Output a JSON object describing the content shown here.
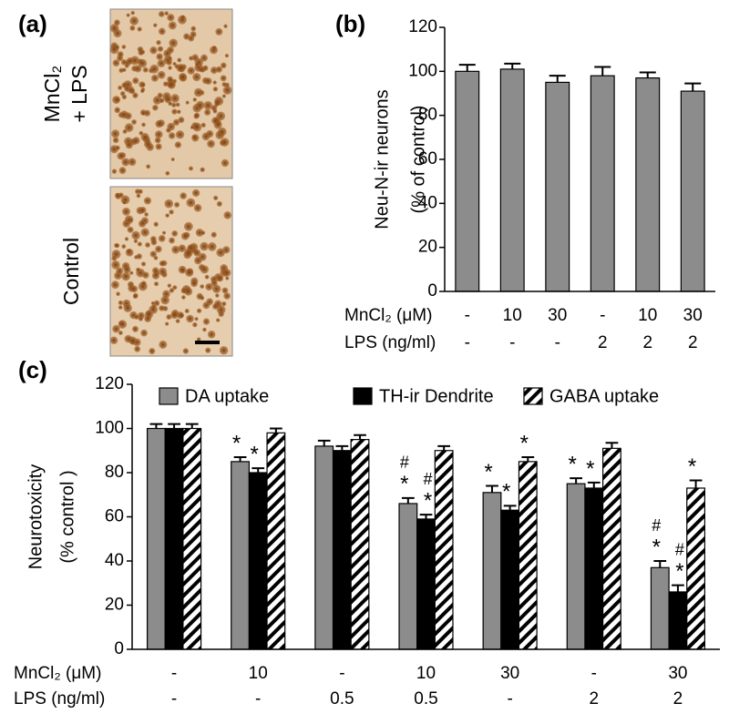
{
  "panel_a": {
    "label": "(a)",
    "images": [
      {
        "label": [
          "MnCl₂",
          "+ LPS"
        ]
      },
      {
        "label": [
          "Control"
        ]
      }
    ]
  },
  "chart_data": [
    {
      "type": "bar",
      "panel_label": "(b)",
      "ylabel": [
        "Neu-N-ir neurons",
        "(% of control)"
      ],
      "row_labels": [
        "MnCl₂ (μM)",
        "LPS (ng/ml)"
      ],
      "categories": [
        "-",
        "10",
        "30",
        "-",
        "10",
        "30"
      ],
      "categories2": [
        "-",
        "-",
        "-",
        "2",
        "2",
        "2"
      ],
      "series": [
        {
          "color": "#8c8c8c",
          "values": [
            100,
            101,
            95,
            98,
            97,
            91
          ],
          "errors": [
            3,
            2.5,
            3,
            4,
            2.5,
            3.5
          ]
        }
      ],
      "ylim": [
        0,
        120
      ],
      "yticks": [
        0,
        20,
        40,
        60,
        80,
        100,
        120
      ]
    },
    {
      "type": "bar",
      "panel_label": "(c)",
      "ylabel": [
        "Neurotoxicity",
        "(% control )"
      ],
      "row_labels": [
        "MnCl₂ (μM)",
        "LPS (ng/ml)"
      ],
      "categories": [
        "-",
        "10",
        "-",
        "10",
        "30",
        "-",
        "30"
      ],
      "categories2": [
        "-",
        "-",
        "0.5",
        "0.5",
        "-",
        "2",
        "2"
      ],
      "series": [
        {
          "name": "DA uptake",
          "color": "#8c8c8c",
          "values": [
            100,
            85,
            92,
            66,
            71,
            75,
            37
          ],
          "errors": [
            2,
            2,
            2.5,
            2.5,
            3,
            2.5,
            3
          ],
          "annotations": [
            null,
            [
              "*"
            ],
            null,
            [
              "#",
              "*"
            ],
            [
              "*"
            ],
            [
              "*"
            ],
            [
              "#",
              "*"
            ]
          ]
        },
        {
          "name": "TH-ir Dendrite",
          "color": "#000000",
          "values": [
            100,
            80,
            90,
            59,
            63,
            73,
            26
          ],
          "errors": [
            2,
            2,
            2,
            2,
            2,
            2.5,
            3
          ],
          "annotations": [
            null,
            [
              "*"
            ],
            null,
            [
              "#",
              "*"
            ],
            [
              "*"
            ],
            [
              "*"
            ],
            [
              "#",
              "*"
            ]
          ]
        },
        {
          "name": "GABA uptake",
          "color": "#ffffff",
          "pattern": "hatch",
          "values": [
            100,
            98,
            95,
            90,
            85,
            91,
            73
          ],
          "errors": [
            2,
            2,
            2,
            2,
            2,
            2.5,
            3.5
          ],
          "annotations": [
            null,
            null,
            null,
            null,
            [
              "*"
            ],
            null,
            [
              "*"
            ]
          ]
        }
      ],
      "ylim": [
        0,
        120
      ],
      "yticks": [
        0,
        20,
        40,
        60,
        80,
        100,
        120
      ],
      "legend": "top"
    }
  ]
}
